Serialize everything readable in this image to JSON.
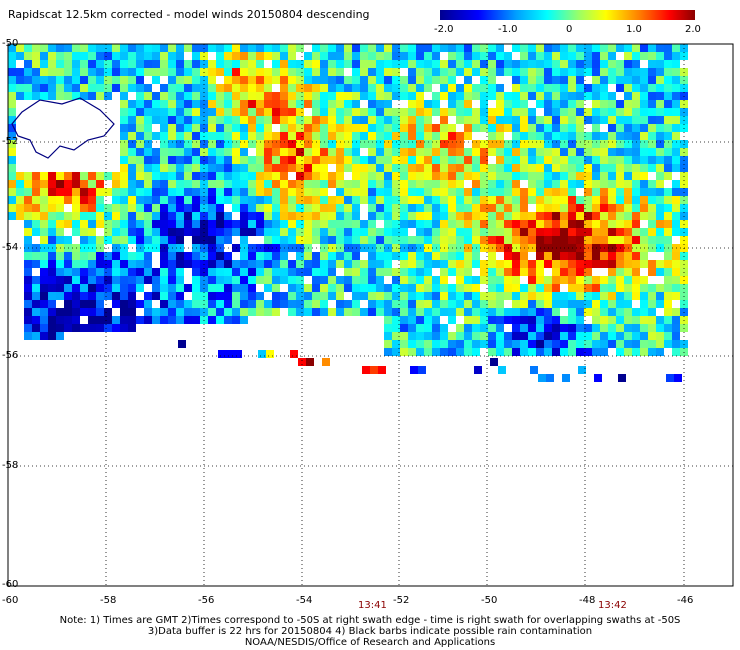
{
  "title": "Rapidscat 12.5km corrected - model winds 20150804 descending",
  "colorbar": {
    "labels": [
      "-2.0",
      "-1.0",
      "0",
      "1.0",
      "2.0"
    ],
    "min": -2.0,
    "max": 2.0
  },
  "axes": {
    "x_ticks": [
      "-60",
      "-58",
      "-56",
      "-54",
      "-52",
      "-50",
      "-48",
      "-46"
    ],
    "y_ticks": [
      "-50",
      "-52",
      "-54",
      "-56",
      "-58",
      "-60"
    ]
  },
  "times": [
    "13:41",
    "13:42"
  ],
  "notes": [
    "Note: 1) Times are GMT 2)Times correspond to -50S at right swath edge - time is right swath for overlapping swaths at -50S",
    "3)Data buffer is 22 hrs for 20150804 4) Black barbs indicate possible rain contamination",
    "NOAA/NESDIS/Office of Research and Applications"
  ],
  "colors": {
    "land_outline": "#000080",
    "grid": "#000000",
    "time_label": "#8b0000"
  }
}
